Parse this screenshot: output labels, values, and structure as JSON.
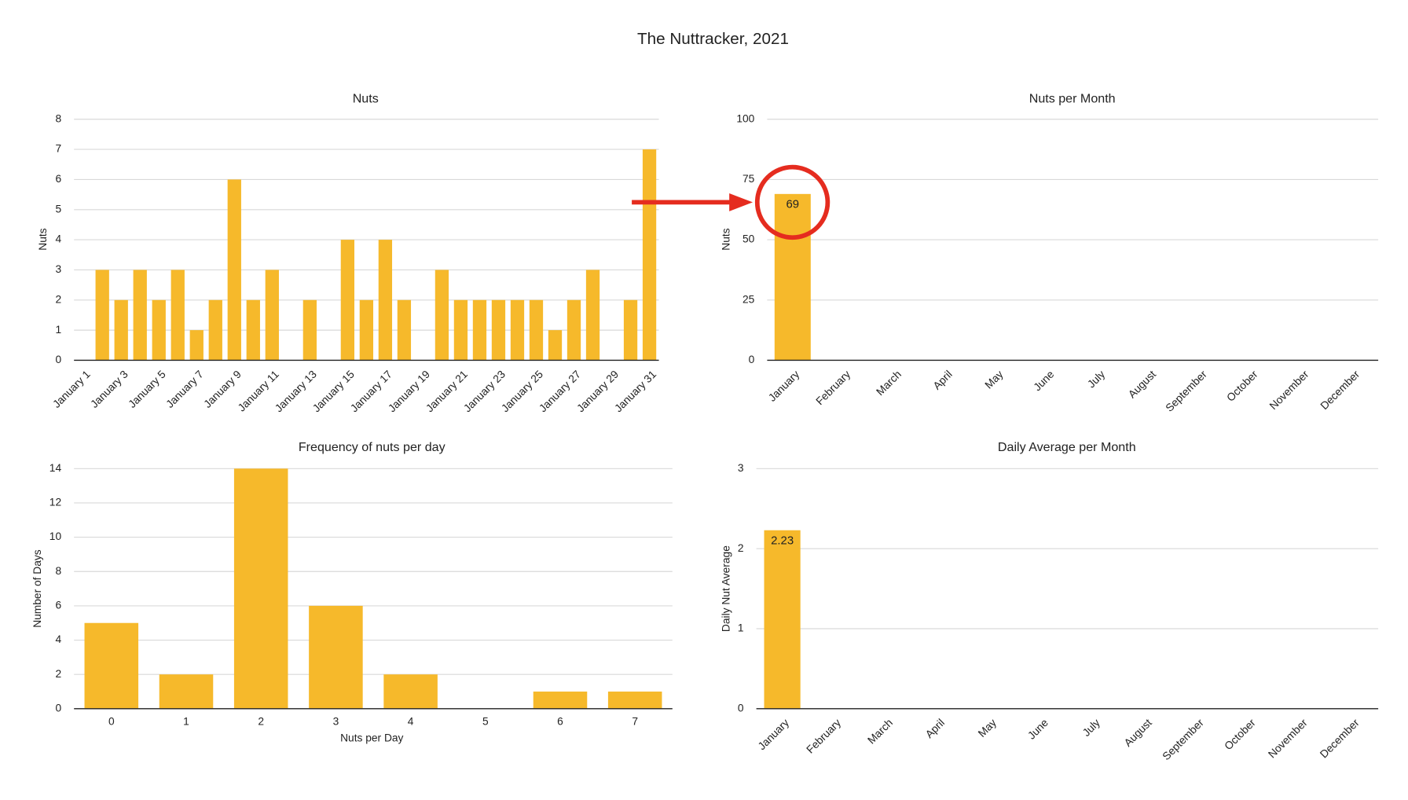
{
  "title": "The Nuttracker, 2021",
  "chart_data": [
    {
      "type": "bar",
      "title": "Nuts",
      "y_label": "Nuts",
      "color": "#f6b92b",
      "grid": true,
      "categories": [
        "January 1",
        null,
        "January 3",
        null,
        "January 5",
        null,
        "January 7",
        null,
        "January 9",
        null,
        "January 11",
        null,
        "January 13",
        null,
        "January 15",
        null,
        "January 17",
        null,
        "January 19",
        null,
        "January 21",
        null,
        "January 23",
        null,
        "January 25",
        null,
        "January 27",
        null,
        "January 29",
        null,
        "January 31"
      ],
      "values": [
        0,
        3,
        2,
        3,
        2,
        3,
        1,
        2,
        6,
        2,
        3,
        0,
        2,
        0,
        4,
        2,
        4,
        2,
        0,
        3,
        2,
        2,
        2,
        2,
        2,
        1,
        2,
        3,
        0,
        2,
        7
      ],
      "ylim": [
        0,
        8
      ],
      "yticks": [
        0,
        1,
        2,
        3,
        4,
        5,
        6,
        7,
        8
      ]
    },
    {
      "type": "bar",
      "title": "Nuts per Month",
      "y_label": "Nuts",
      "color": "#f6b92b",
      "grid": true,
      "show_values": true,
      "categories": [
        "January",
        "February",
        "March",
        "April",
        "May",
        "June",
        "July",
        "August",
        "September",
        "October",
        "November",
        "December"
      ],
      "values": [
        69,
        null,
        null,
        null,
        null,
        null,
        null,
        null,
        null,
        null,
        null,
        null
      ],
      "ylim": [
        0,
        100
      ],
      "yticks": [
        0,
        25,
        50,
        75,
        100
      ]
    },
    {
      "type": "bar",
      "title": "Frequency of nuts per day",
      "x_label": "Nuts per Day",
      "y_label": "Number of Days",
      "color": "#f6b92b",
      "grid": true,
      "categories": [
        "0",
        "1",
        "2",
        "3",
        "4",
        "5",
        "6",
        "7"
      ],
      "values": [
        5,
        2,
        14,
        6,
        2,
        0,
        1,
        1
      ],
      "ylim": [
        0,
        14
      ],
      "yticks": [
        0,
        2,
        4,
        6,
        8,
        10,
        12,
        14
      ]
    },
    {
      "type": "bar",
      "title": "Daily Average per Month",
      "y_label": "Daily Nut Average",
      "color": "#f6b92b",
      "grid": true,
      "show_values": true,
      "categories": [
        "January",
        "February",
        "March",
        "April",
        "May",
        "June",
        "July",
        "August",
        "September",
        "October",
        "November",
        "December"
      ],
      "values": [
        2.23,
        null,
        null,
        null,
        null,
        null,
        null,
        null,
        null,
        null,
        null,
        null
      ],
      "ylim": [
        0,
        3
      ],
      "yticks": [
        0,
        1,
        2,
        3
      ]
    }
  ]
}
